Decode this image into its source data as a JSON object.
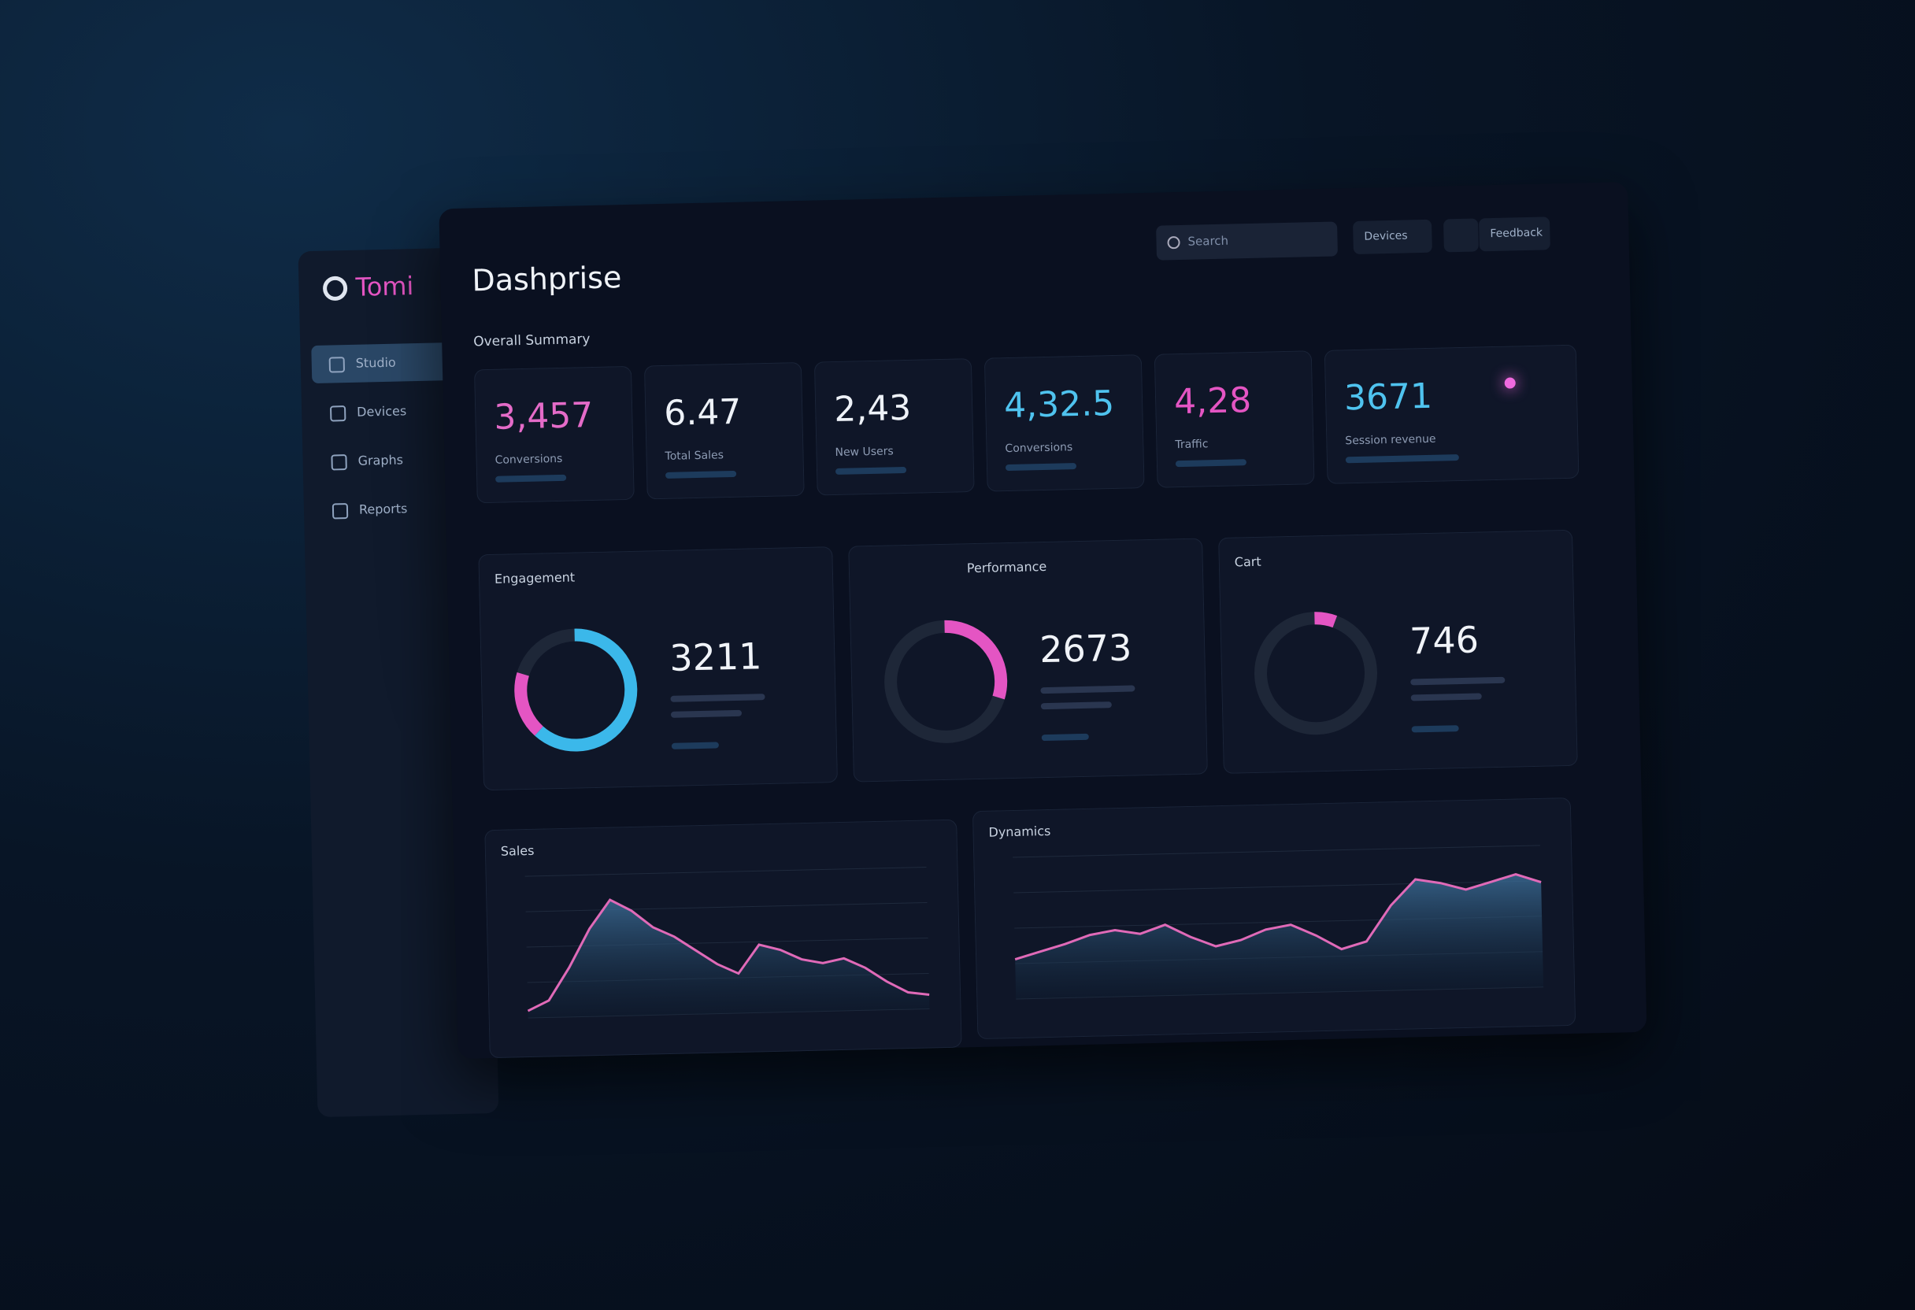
{
  "brand": "Tomi",
  "title": "Dashprise",
  "search": "Search",
  "toolbar": [
    "Devices",
    "Feedback"
  ],
  "nav": [
    "Studio",
    "Devices",
    "Graphs",
    "Reports"
  ],
  "section": "Overall Summary",
  "kpis": [
    {
      "value": "3,457",
      "label": "Conversions",
      "color": "#e46bc8"
    },
    {
      "value": "6.47",
      "label": "Total Sales",
      "color": "#eef2f8"
    },
    {
      "value": "2,43",
      "label": "New Users",
      "color": "#eef2f8"
    },
    {
      "value": "4,32.5",
      "label": "Conversions",
      "color": "#4fc3ef"
    },
    {
      "value": "4,28",
      "label": "Traffic",
      "color": "#e455c3"
    },
    {
      "value": "3671",
      "label": "Session revenue",
      "color": "#4fc3ef"
    }
  ],
  "panels": [
    {
      "title": "Engagement",
      "value": "3211",
      "segments": [
        {
          "value": 62,
          "color": "#3bb8ea"
        },
        {
          "value": 18,
          "color": "#e455c3"
        }
      ]
    },
    {
      "title": "Performance",
      "value": "2673",
      "segments": [
        {
          "value": 30,
          "color": "#e455c3"
        }
      ]
    },
    {
      "title": "Cart",
      "value": "746",
      "segments": [
        {
          "value": 6,
          "color": "#e455c3"
        }
      ]
    }
  ],
  "chart_data": [
    {
      "type": "line",
      "title": "Sales",
      "ylim": [
        0,
        100
      ],
      "series": [
        {
          "color": "#e06ab8",
          "values": [
            5,
            12,
            35,
            62,
            82,
            74,
            62,
            55,
            45,
            35,
            28,
            48,
            44,
            37,
            34,
            37,
            30,
            20,
            12,
            10
          ]
        }
      ]
    },
    {
      "type": "line",
      "title": "Dynamics",
      "ylim": [
        0,
        100
      ],
      "series": [
        {
          "color": "#e06ab8",
          "values": [
            28,
            33,
            38,
            44,
            47,
            44,
            50,
            41,
            34,
            38,
            45,
            48,
            40,
            30,
            35,
            60,
            78,
            75,
            70,
            75,
            80,
            74
          ]
        }
      ]
    }
  ]
}
